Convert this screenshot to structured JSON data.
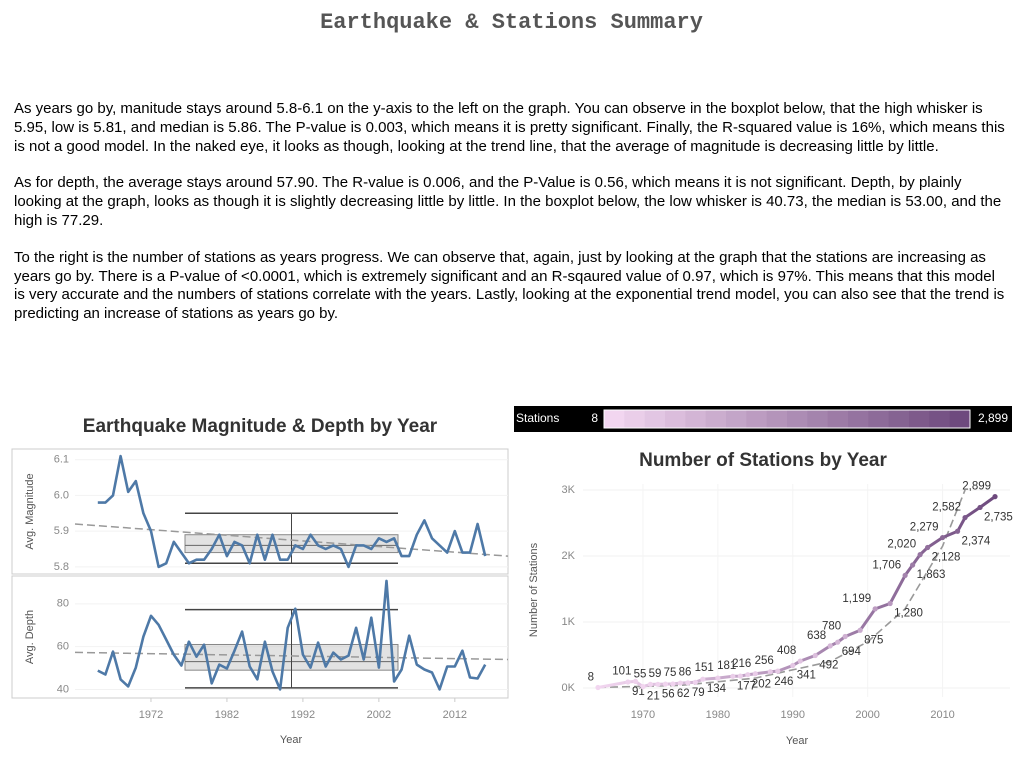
{
  "header": {
    "title": "Earthquake & Stations Summary"
  },
  "paragraphs": [
    "As years go by, manitude stays around 5.8-6.1 on the y-axis to the left on the graph. You can observe in the boxplot below, that the high whisker is 5.95, low is 5.81, and median is 5.86. The P-value is 0.003, which means it is pretty significant. Finally, the R-squared value is 16%, which means this is not a good model.  In the naked eye, it looks as though, looking at the trend line, that the average of magnitude is decreasing little by little.",
    "As for depth, the average stays around 57.90. The R-value is 0.006, and the P-Value is 0.56, which means it is not significant. Depth, by plainly looking at the graph, looks as though it is slightly decreasing little by little. In the boxplot below, the low whisker is 40.73, the median is 53.00, and the high is 77.29.",
    "To the right is the number of stations as years progress. We can observe that, again, just by looking at the graph that the stations are increasing as years go by. There is a P-value of <0.0001, which is extremely significant and an R-sqaured value of 0.97, which is 97%. This means that this model is very accurate and the numbers of stations correlate with the years. Lastly, looking at the exponential trend model, you can also see that the trend is predicting an increase of stations as years go by."
  ],
  "chart_data": [
    {
      "type": "line",
      "title": "Earthquake Magnitude & Depth by Year",
      "x_label": "Year",
      "color": "#4e79a7",
      "x": [
        1965,
        1966,
        1967,
        1968,
        1969,
        1970,
        1971,
        1972,
        1973,
        1974,
        1975,
        1976,
        1977,
        1978,
        1979,
        1980,
        1981,
        1982,
        1983,
        1984,
        1985,
        1986,
        1987,
        1988,
        1989,
        1990,
        1991,
        1992,
        1993,
        1994,
        1995,
        1996,
        1997,
        1998,
        1999,
        2000,
        2001,
        2002,
        2003,
        2004,
        2005,
        2006,
        2007,
        2008,
        2009,
        2010,
        2011,
        2012,
        2013,
        2014,
        2015,
        2016
      ],
      "xlim": [
        1962,
        2019
      ],
      "xticks": [
        1972,
        1982,
        1992,
        2002,
        2012
      ],
      "panels": [
        {
          "y_label": "Avg. Magnitude",
          "values": [
            5.98,
            5.98,
            6.0,
            6.11,
            6.01,
            6.04,
            5.95,
            5.9,
            5.8,
            5.81,
            5.87,
            5.84,
            5.81,
            5.82,
            5.82,
            5.85,
            5.89,
            5.83,
            5.87,
            5.86,
            5.81,
            5.89,
            5.82,
            5.89,
            5.82,
            5.82,
            5.86,
            5.85,
            5.89,
            5.86,
            5.85,
            5.86,
            5.85,
            5.8,
            5.86,
            5.86,
            5.85,
            5.88,
            5.87,
            5.88,
            5.83,
            5.83,
            5.89,
            5.93,
            5.88,
            5.86,
            5.84,
            5.9,
            5.84,
            5.84,
            5.92,
            5.83
          ],
          "ylim": [
            5.78,
            6.13
          ],
          "yticks": [
            5.8,
            5.9,
            {
              "value": 6,
              "label": "6.0"
            },
            6.1
          ],
          "box": {
            "low": 5.81,
            "q1": 5.84,
            "median": 5.86,
            "q3": 5.89,
            "high": 5.95
          },
          "trend": [
            5.92,
            5.83
          ]
        },
        {
          "y_label": "Avg. Depth",
          "values": [
            48.8,
            47,
            57.7,
            44.7,
            41.4,
            50.2,
            64.7,
            74.4,
            70.2,
            63.3,
            56.3,
            51.2,
            62.3,
            55.3,
            60.9,
            42.8,
            51.6,
            49.8,
            58.1,
            67,
            50.7,
            44.7,
            62.3,
            48.4,
            40,
            68.8,
            77.7,
            56.3,
            50.2,
            61.9,
            50.7,
            57.2,
            54,
            55.8,
            68.8,
            54,
            73.5,
            50.2,
            90.7,
            43.7,
            49.3,
            65.1,
            51.6,
            49.3,
            47.9,
            40,
            50.7,
            50.7,
            58.1,
            45.6,
            45.1,
            51.6
          ],
          "ylim": [
            36,
            93
          ],
          "yticks": [
            40,
            60,
            80
          ],
          "box": {
            "low": 40.73,
            "q1": 49,
            "median": 53.0,
            "q3": 61,
            "high": 77.29
          },
          "trend": [
            57.3,
            54
          ]
        }
      ]
    },
    {
      "type": "line",
      "title": "Number of Stations by Year",
      "x_label": "Year",
      "y_label": "Number of Stations",
      "x": [
        1964,
        1968,
        1969,
        1970,
        1971,
        1972,
        1973,
        1974,
        1975,
        1976,
        1977,
        1978,
        1980,
        1982,
        1983,
        1984,
        1985,
        1987,
        1988,
        1990,
        1991,
        1993,
        1995,
        1996,
        1997,
        1999,
        2001,
        2003,
        2005,
        2006,
        2007,
        2008,
        2010,
        2012,
        2013,
        2015,
        2017
      ],
      "values": [
        8,
        91,
        101,
        21,
        55,
        56,
        59,
        62,
        75,
        79,
        86,
        134,
        151,
        177,
        181,
        202,
        216,
        246,
        256,
        341,
        408,
        492,
        638,
        694,
        780,
        875,
        1199,
        1280,
        1706,
        1863,
        2020,
        2128,
        2279,
        2374,
        2582,
        2735,
        2899
      ],
      "value_labels": [
        "8",
        "91",
        "101",
        "21",
        "55",
        "56",
        "59",
        "62",
        "75",
        "79",
        "86",
        "134",
        "151",
        "177",
        "181",
        "202",
        "216",
        "246",
        "256",
        "341",
        "408",
        "492",
        "638",
        "694",
        "780",
        "875",
        "1,199",
        "1,280",
        "1,706",
        "1,863",
        "2,020",
        "2,128",
        "2,279",
        "2,374",
        "2,582",
        "2,735",
        "2,899"
      ],
      "xlim": [
        1962,
        2019
      ],
      "xticks": [
        1970,
        1980,
        1990,
        2000,
        2010
      ],
      "ylim": [
        -136,
        3090
      ],
      "yticks": [
        {
          "value": 0,
          "label": "0K"
        },
        {
          "value": 1000,
          "label": "1K"
        },
        {
          "value": 2000,
          "label": "2K"
        },
        {
          "value": 3000,
          "label": "3K"
        }
      ],
      "trend": {
        "x": [
          1964,
          1975,
          1985,
          1995,
          2000,
          2005,
          2010,
          2013
        ],
        "values": [
          10,
          40,
          150,
          400,
          700,
          1200,
          2150,
          3000
        ]
      },
      "color_legend": {
        "title": "Stations",
        "min": 8,
        "max": {
          "value": 2899,
          "label": "2,899"
        },
        "colors": [
          "#f2d6f0",
          "#6e4a7e"
        ]
      }
    }
  ]
}
